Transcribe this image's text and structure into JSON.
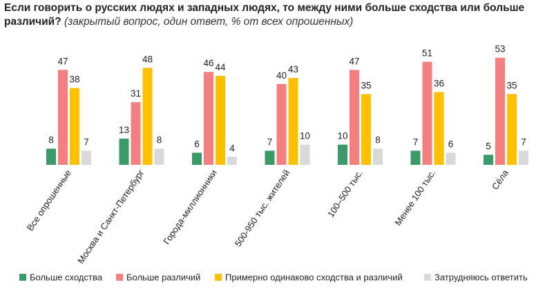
{
  "title": {
    "main": "Если говорить о русских людях и западных людях, то между ними больше сходства или больше различий?",
    "subtitle": "(закрытый вопрос, один ответ, % от всех опрошенных)"
  },
  "chart_data": {
    "type": "bar",
    "title": "Если говорить о русских людях и западных людях, то между ними больше сходства или больше различий?",
    "subtitle": "(закрытый вопрос, один ответ, % от всех опрошенных)",
    "categories": [
      "Все опрошенные",
      "Москва и Санкт-Петербург",
      "Города-миллионники",
      "500-950 тыс. жителей",
      "100–500 тыс.",
      "Менее 100 тыс.",
      "Сёла"
    ],
    "series": [
      {
        "name": "Больше сходства",
        "color": "#3a9a68",
        "values": [
          8,
          13,
          6,
          7,
          10,
          7,
          5
        ]
      },
      {
        "name": "Больше различий",
        "color": "#f47f80",
        "values": [
          47,
          31,
          46,
          40,
          47,
          51,
          53
        ]
      },
      {
        "name": "Примерно одинаково сходства и различий",
        "color": "#ffc000",
        "values": [
          38,
          48,
          44,
          43,
          35,
          36,
          35
        ]
      },
      {
        "name": "Затрудняюсь ответить",
        "color": "#d9d9d9",
        "values": [
          7,
          8,
          4,
          10,
          8,
          6,
          7
        ]
      }
    ],
    "xlabel": "",
    "ylabel": "",
    "ylim": [
      0,
      55
    ],
    "legend_position": "bottom",
    "grid": false
  }
}
